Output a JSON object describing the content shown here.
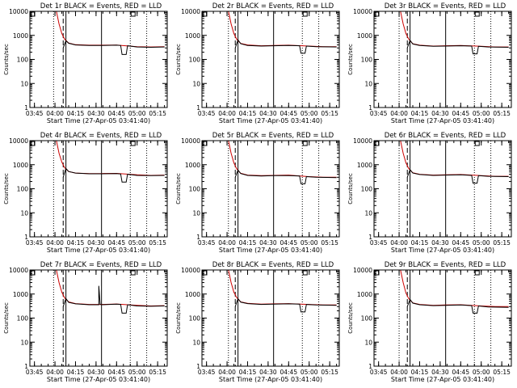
{
  "figure": {
    "xlabel": "Start Time (27-Apr-05 03:41:40)",
    "ylabel": "Counts/sec",
    "xtick_labels": [
      "03:45",
      "04:00",
      "04:15",
      "04:30",
      "04:45",
      "05:00",
      "05:15"
    ],
    "ytick_labels": [
      "1",
      "10",
      "100",
      "1000",
      "10000"
    ],
    "colors": {
      "events": "#000000",
      "lld": "#cc0000"
    }
  },
  "chart_data": [
    {
      "type": "line",
      "title": "Det 1r BLACK = Events, RED = LLD",
      "ylim": [
        1,
        10000
      ],
      "yscale": "log",
      "x_range": [
        "03:41:40",
        "05:22:00"
      ],
      "markers": {
        "dotted": [
          "03:59",
          "04:55",
          "05:07"
        ],
        "dashed": "04:06",
        "solid": [
          "04:08",
          "04:34"
        ]
      },
      "series": [
        {
          "color": "black",
          "x": [
            "04:06",
            "04:08",
            "04:10",
            "04:15",
            "04:25",
            "04:34",
            "04:45",
            "04:48",
            "04:49",
            "04:52",
            "04:53",
            "05:00",
            "05:10",
            "05:20"
          ],
          "y": [
            300,
            600,
            470,
            400,
            380,
            380,
            390,
            380,
            160,
            160,
            370,
            330,
            320,
            330
          ]
        },
        {
          "color": "red",
          "x": [
            "04:01",
            "04:03",
            "04:05",
            "04:07",
            "04:10",
            "04:15",
            "04:25",
            "04:34",
            "04:45",
            "05:00",
            "05:10",
            "05:20"
          ],
          "y": [
            10000,
            3000,
            1200,
            700,
            480,
            410,
            390,
            390,
            395,
            340,
            330,
            340
          ]
        }
      ]
    },
    {
      "type": "line",
      "title": "Det 2r BLACK = Events, RED = LLD",
      "ylim": [
        1,
        10000
      ],
      "yscale": "log",
      "x_range": [
        "03:41:40",
        "05:22:00"
      ],
      "markers": {
        "dotted": [
          "04:01",
          "04:55",
          "05:07"
        ],
        "dashed": "04:06",
        "solid": [
          "04:08",
          "04:34"
        ]
      },
      "series": [
        {
          "color": "black",
          "x": [
            "04:06",
            "04:08",
            "04:10",
            "04:15",
            "04:25",
            "04:34",
            "04:45",
            "04:53",
            "04:54",
            "04:57",
            "04:58",
            "05:05",
            "05:20"
          ],
          "y": [
            300,
            650,
            450,
            380,
            360,
            370,
            380,
            370,
            180,
            180,
            360,
            340,
            330
          ]
        },
        {
          "color": "red",
          "x": [
            "04:01",
            "04:03",
            "04:05",
            "04:07",
            "04:10",
            "04:15",
            "04:25",
            "04:34",
            "04:45",
            "05:00",
            "05:10",
            "05:20"
          ],
          "y": [
            10000,
            3000,
            1200,
            700,
            460,
            400,
            370,
            380,
            390,
            360,
            340,
            340
          ]
        }
      ]
    },
    {
      "type": "line",
      "title": "Det 3r BLACK = Events, RED = LLD",
      "ylim": [
        1,
        10000
      ],
      "yscale": "log",
      "x_range": [
        "03:41:40",
        "05:22:00"
      ],
      "markers": {
        "dotted": [
          "04:00",
          "04:55",
          "05:07"
        ],
        "dashed": "04:06",
        "solid": [
          "04:08",
          "04:34"
        ]
      },
      "series": [
        {
          "color": "black",
          "x": [
            "04:06",
            "04:08",
            "04:10",
            "04:15",
            "04:25",
            "04:34",
            "04:45",
            "04:53",
            "04:54",
            "04:57",
            "04:58",
            "05:05",
            "05:20"
          ],
          "y": [
            300,
            620,
            440,
            380,
            350,
            360,
            370,
            360,
            170,
            170,
            350,
            330,
            320
          ]
        },
        {
          "color": "red",
          "x": [
            "04:01",
            "04:03",
            "04:05",
            "04:07",
            "04:10",
            "04:15",
            "04:25",
            "04:34",
            "04:45",
            "05:00",
            "05:10",
            "05:20"
          ],
          "y": [
            10000,
            3000,
            1200,
            700,
            450,
            390,
            360,
            370,
            380,
            350,
            330,
            330
          ]
        }
      ]
    },
    {
      "type": "line",
      "title": "Det 4r BLACK = Events, RED = LLD",
      "ylim": [
        1,
        10000
      ],
      "yscale": "log",
      "x_range": [
        "03:41:40",
        "05:22:00"
      ],
      "markers": {
        "dotted": [
          "03:59",
          "04:55",
          "05:07"
        ],
        "dashed": "04:06",
        "solid": [
          "04:08",
          "04:34"
        ]
      },
      "series": [
        {
          "color": "black",
          "x": [
            "04:06",
            "04:08",
            "04:10",
            "04:15",
            "04:25",
            "04:34",
            "04:45",
            "04:48",
            "04:49",
            "04:52",
            "04:53",
            "05:00",
            "05:10",
            "05:20"
          ],
          "y": [
            300,
            700,
            520,
            450,
            420,
            420,
            430,
            410,
            190,
            190,
            400,
            360,
            350,
            360
          ]
        },
        {
          "color": "red",
          "x": [
            "04:01",
            "04:03",
            "04:05",
            "04:07",
            "04:10",
            "04:15",
            "04:25",
            "04:34",
            "04:45",
            "05:00",
            "05:10",
            "05:20"
          ],
          "y": [
            10000,
            3000,
            1300,
            760,
            520,
            450,
            430,
            430,
            435,
            380,
            360,
            370
          ]
        }
      ]
    },
    {
      "type": "line",
      "title": "Det 5r BLACK = Events, RED = LLD",
      "ylim": [
        1,
        10000
      ],
      "yscale": "log",
      "x_range": [
        "03:41:40",
        "05:22:00"
      ],
      "markers": {
        "dotted": [
          "04:01",
          "04:55",
          "05:07"
        ],
        "dashed": "04:06",
        "solid": [
          "04:08",
          "04:34"
        ]
      },
      "series": [
        {
          "color": "black",
          "x": [
            "04:06",
            "04:08",
            "04:10",
            "04:15",
            "04:25",
            "04:34",
            "04:45",
            "04:53",
            "04:54",
            "04:57",
            "04:58",
            "05:05",
            "05:20"
          ],
          "y": [
            300,
            600,
            430,
            360,
            340,
            350,
            350,
            340,
            160,
            160,
            320,
            300,
            290
          ]
        },
        {
          "color": "red",
          "x": [
            "04:01",
            "04:03",
            "04:05",
            "04:07",
            "04:10",
            "04:15",
            "04:25",
            "04:34",
            "04:45",
            "05:00",
            "05:10",
            "05:20"
          ],
          "y": [
            10000,
            3000,
            1200,
            680,
            440,
            370,
            350,
            360,
            370,
            320,
            300,
            300
          ]
        }
      ]
    },
    {
      "type": "line",
      "title": "Det 6r BLACK = Events, RED = LLD",
      "ylim": [
        1,
        10000
      ],
      "yscale": "log",
      "x_range": [
        "03:41:40",
        "05:22:00"
      ],
      "markers": {
        "dotted": [
          "04:00",
          "04:55",
          "05:07"
        ],
        "dashed": "04:06",
        "solid": [
          "04:08",
          "04:34"
        ]
      },
      "series": [
        {
          "color": "black",
          "x": [
            "04:06",
            "04:08",
            "04:10",
            "04:15",
            "04:25",
            "04:34",
            "04:45",
            "04:53",
            "04:54",
            "04:57",
            "04:58",
            "05:05",
            "05:20"
          ],
          "y": [
            300,
            620,
            450,
            390,
            360,
            370,
            380,
            360,
            170,
            170,
            350,
            330,
            320
          ]
        },
        {
          "color": "red",
          "x": [
            "04:01",
            "04:03",
            "04:05",
            "04:07",
            "04:10",
            "04:15",
            "04:25",
            "04:34",
            "04:45",
            "05:00",
            "05:10",
            "05:20"
          ],
          "y": [
            10000,
            3000,
            1200,
            700,
            460,
            400,
            370,
            380,
            390,
            350,
            330,
            330
          ]
        }
      ]
    },
    {
      "type": "line",
      "title": "Det 7r BLACK = Events, RED = LLD",
      "ylim": [
        1,
        10000
      ],
      "yscale": "log",
      "x_range": [
        "03:41:40",
        "05:22:00"
      ],
      "markers": {
        "dotted": [
          "03:59",
          "04:55",
          "05:07"
        ],
        "dashed": "04:06",
        "solid": [
          "04:08",
          "04:34"
        ]
      },
      "series": [
        {
          "color": "black",
          "x": [
            "04:06",
            "04:08",
            "04:10",
            "04:15",
            "04:25",
            "04:32",
            "04:32",
            "04:33",
            "04:34",
            "04:45",
            "04:48",
            "04:49",
            "04:52",
            "04:53",
            "05:00",
            "05:10",
            "05:20"
          ],
          "y": [
            300,
            650,
            450,
            390,
            360,
            360,
            2200,
            370,
            360,
            380,
            370,
            160,
            160,
            360,
            320,
            310,
            320
          ]
        },
        {
          "color": "red",
          "x": [
            "04:01",
            "04:03",
            "04:05",
            "04:07",
            "04:10",
            "04:15",
            "04:25",
            "04:34",
            "04:45",
            "05:00",
            "05:10",
            "05:20"
          ],
          "y": [
            10000,
            3000,
            1200,
            700,
            470,
            400,
            370,
            370,
            385,
            340,
            320,
            330
          ]
        }
      ]
    },
    {
      "type": "line",
      "title": "Det 8r BLACK = Events, RED = LLD",
      "ylim": [
        1,
        10000
      ],
      "yscale": "log",
      "x_range": [
        "03:41:40",
        "05:22:00"
      ],
      "markers": {
        "dotted": [
          "04:01",
          "04:55",
          "05:07"
        ],
        "dashed": "04:06",
        "solid": [
          "04:08",
          "04:34"
        ]
      },
      "series": [
        {
          "color": "black",
          "x": [
            "04:06",
            "04:08",
            "04:10",
            "04:15",
            "04:25",
            "04:34",
            "04:45",
            "04:53",
            "04:54",
            "04:57",
            "04:58",
            "05:05",
            "05:20"
          ],
          "y": [
            300,
            640,
            460,
            400,
            370,
            380,
            390,
            380,
            180,
            180,
            370,
            350,
            340
          ]
        },
        {
          "color": "red",
          "x": [
            "04:01",
            "04:03",
            "04:05",
            "04:07",
            "04:10",
            "04:15",
            "04:25",
            "04:34",
            "04:45",
            "05:00",
            "05:10",
            "05:20"
          ],
          "y": [
            10000,
            3000,
            1200,
            720,
            470,
            410,
            380,
            390,
            400,
            370,
            350,
            350
          ]
        }
      ]
    },
    {
      "type": "line",
      "title": "Det 9r BLACK = Events, RED = LLD",
      "ylim": [
        1,
        10000
      ],
      "yscale": "log",
      "x_range": [
        "03:41:40",
        "05:22:00"
      ],
      "markers": {
        "dotted": [
          "04:00",
          "04:55",
          "05:07"
        ],
        "dashed": "04:06",
        "solid": [
          "04:08",
          "04:34"
        ]
      },
      "series": [
        {
          "color": "black",
          "x": [
            "04:06",
            "04:08",
            "04:10",
            "04:15",
            "04:25",
            "04:34",
            "04:45",
            "04:53",
            "04:54",
            "04:57",
            "04:58",
            "05:05",
            "05:20"
          ],
          "y": [
            300,
            600,
            420,
            360,
            330,
            340,
            350,
            330,
            160,
            160,
            320,
            290,
            280
          ]
        },
        {
          "color": "red",
          "x": [
            "04:01",
            "04:03",
            "04:05",
            "04:07",
            "04:10",
            "04:15",
            "04:25",
            "04:34",
            "04:45",
            "05:00",
            "05:10",
            "05:20"
          ],
          "y": [
            10000,
            3000,
            1100,
            650,
            430,
            370,
            340,
            350,
            360,
            320,
            300,
            300
          ]
        }
      ]
    }
  ]
}
